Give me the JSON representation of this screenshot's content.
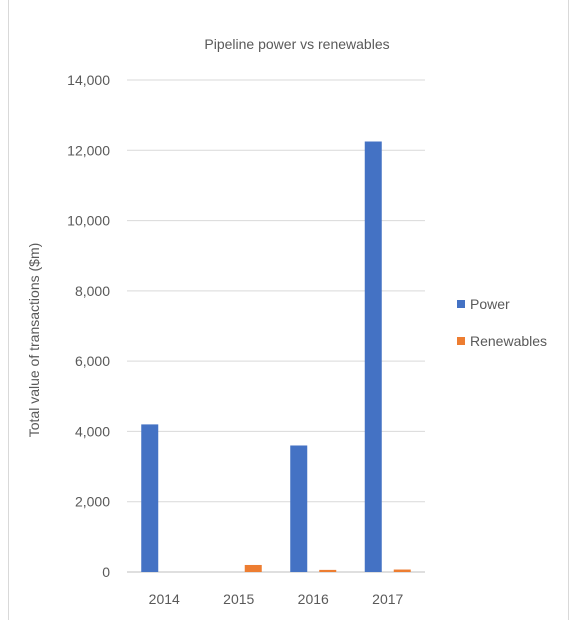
{
  "chart_data": {
    "type": "bar",
    "title": "Pipeline power vs renewables",
    "xlabel": "",
    "ylabel": "Total value of transactions ($m)",
    "categories": [
      "2014",
      "2015",
      "2016",
      "2017"
    ],
    "ylim": [
      0,
      14000
    ],
    "yticks": [
      0,
      2000,
      4000,
      6000,
      8000,
      10000,
      12000,
      14000
    ],
    "ytick_labels": [
      "0",
      "2,000",
      "4,000",
      "6,000",
      "8,000",
      "10,000",
      "12,000",
      "14,000"
    ],
    "grid": true,
    "legend_position": "right",
    "series": [
      {
        "name": "Power",
        "color": "#4472c4",
        "values": [
          4200,
          0,
          3600,
          12250
        ]
      },
      {
        "name": "Renewables",
        "color": "#ed7d31",
        "values": [
          0,
          200,
          60,
          70
        ]
      }
    ]
  }
}
